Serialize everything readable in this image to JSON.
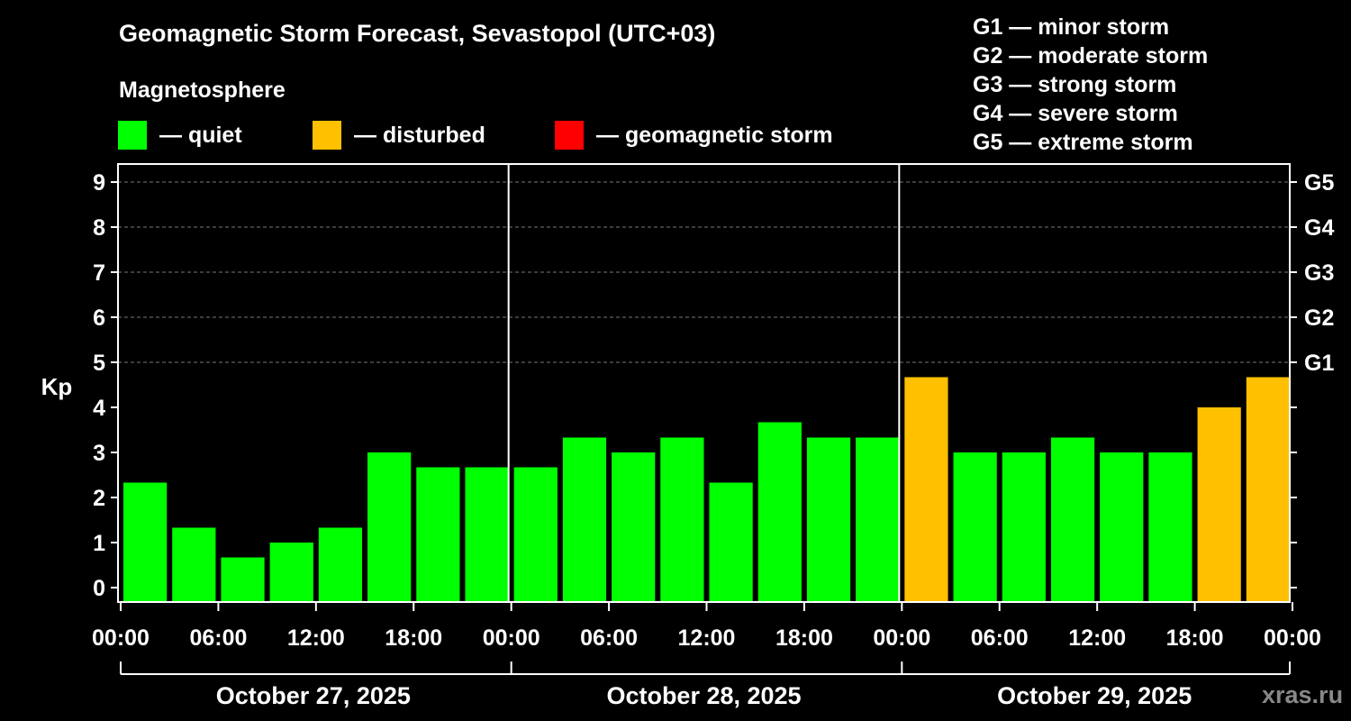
{
  "title": "Geomagnetic Storm Forecast, Sevastopol (UTC+03)",
  "magnetosphere_label": "Magnetosphere",
  "legend": [
    {
      "label": "— quiet",
      "color": "#00ff00"
    },
    {
      "label": "— disturbed",
      "color": "#ffc000"
    },
    {
      "label": "— geomagnetic storm",
      "color": "#ff0000"
    }
  ],
  "g_scale": [
    {
      "level": "G1",
      "text": "G1 — minor storm"
    },
    {
      "level": "G2",
      "text": "G2 — moderate storm"
    },
    {
      "level": "G3",
      "text": "G3 — strong storm"
    },
    {
      "level": "G4",
      "text": "G4 — severe storm"
    },
    {
      "level": "G5",
      "text": "G5 — extreme storm"
    }
  ],
  "watermark": "xras.ru",
  "chart_data": {
    "type": "bar",
    "ylabel": "Kp",
    "ylim": [
      0,
      9
    ],
    "yticks": [
      "0",
      "1",
      "2",
      "3",
      "4",
      "5",
      "6",
      "7",
      "8",
      "9"
    ],
    "right_ticks": [
      {
        "value": 5,
        "label": "G1"
      },
      {
        "value": 6,
        "label": "G2"
      },
      {
        "value": 7,
        "label": "G3"
      },
      {
        "value": 8,
        "label": "G4"
      },
      {
        "value": 9,
        "label": "G5"
      }
    ],
    "grid": "dashed horizontal at 5, 6, 7, 8, 9",
    "xtick_labels": [
      "00:00",
      "06:00",
      "12:00",
      "18:00",
      "00:00",
      "06:00",
      "12:00",
      "18:00",
      "00:00",
      "06:00",
      "12:00",
      "18:00",
      "00:00"
    ],
    "days": [
      "October 27, 2025",
      "October 28, 2025",
      "October 29, 2025"
    ],
    "bars_per_day": 8,
    "values": [
      2.33,
      1.33,
      0.67,
      1.0,
      1.33,
      3.0,
      2.67,
      2.67,
      2.67,
      3.33,
      3.0,
      3.33,
      2.33,
      3.67,
      3.33,
      3.33,
      4.67,
      3.0,
      3.0,
      3.33,
      3.0,
      3.0,
      4.0,
      4.67
    ],
    "status": [
      "quiet",
      "quiet",
      "quiet",
      "quiet",
      "quiet",
      "quiet",
      "quiet",
      "quiet",
      "quiet",
      "quiet",
      "quiet",
      "quiet",
      "quiet",
      "quiet",
      "quiet",
      "quiet",
      "disturbed",
      "quiet",
      "quiet",
      "quiet",
      "quiet",
      "quiet",
      "disturbed",
      "disturbed"
    ],
    "colors": {
      "quiet": "#00ff00",
      "disturbed": "#ffc000",
      "storm": "#ff0000"
    }
  }
}
